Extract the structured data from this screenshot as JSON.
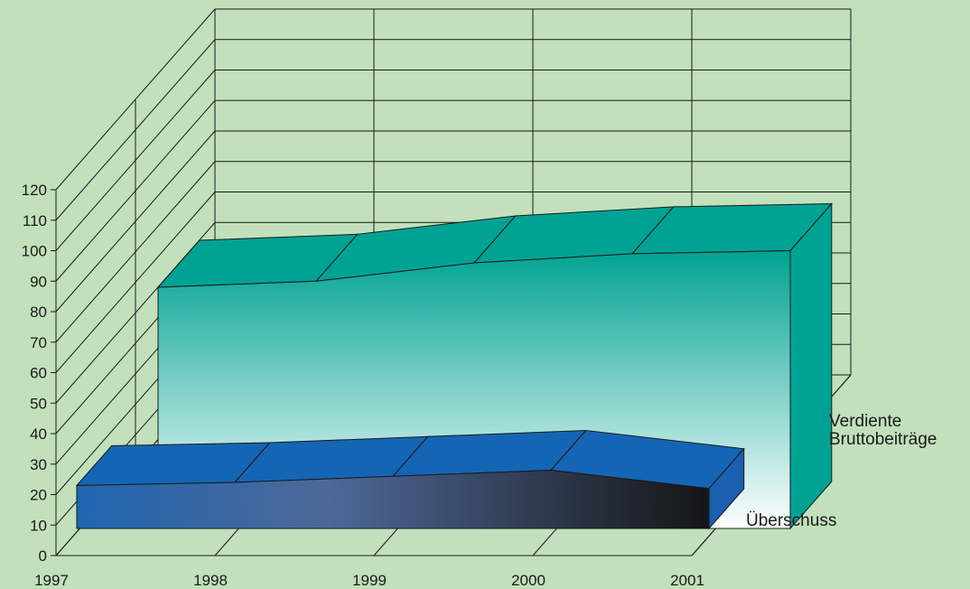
{
  "chart_data": {
    "type": "area",
    "style": "3d-stacked-ribbons",
    "categories": [
      "1997",
      "1998",
      "1999",
      "2000",
      "2001"
    ],
    "series": [
      {
        "name": "Verdiente Bruttobeiträge",
        "values": [
          88,
          90,
          96,
          99,
          100
        ],
        "color": "#00a393",
        "gradient_bottom": "#ffffff"
      },
      {
        "name": "Überschuss",
        "values": [
          23,
          24,
          26,
          28,
          22
        ],
        "color": "#1565b5",
        "gradient_end": "#1a1a1a"
      }
    ],
    "ylim": [
      0,
      120
    ],
    "yticks": [
      0,
      10,
      20,
      30,
      40,
      50,
      60,
      70,
      80,
      90,
      100,
      110,
      120
    ],
    "grid": true,
    "legend": "right, at end of each ribbon",
    "background": "#c2e0bc"
  }
}
